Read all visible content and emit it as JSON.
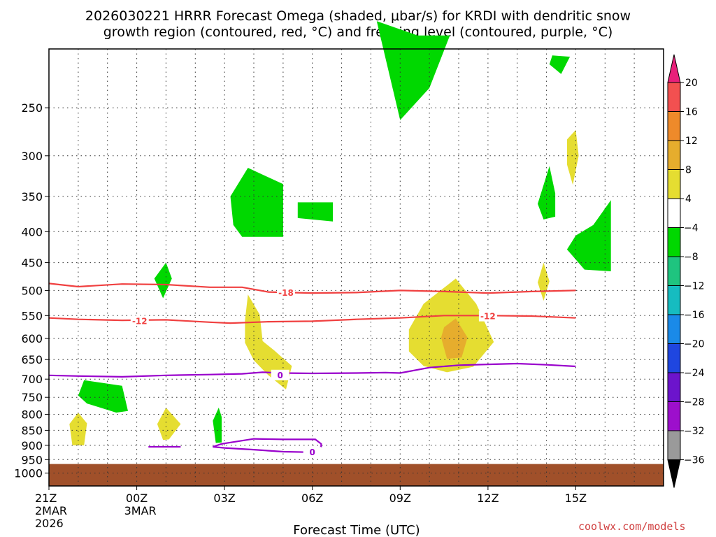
{
  "title_line1": "2026030221 HRRR Forecast Omega (shaded, μbar/s) for KRDI with dendritic snow",
  "title_line2": "growth region (contoured, red, °C) and freezing level (contoured, purple, °C)",
  "credit": "coolwx.com/models",
  "colors": {
    "neg4": "#00d800",
    "pos4": "#e5dd31",
    "pos8": "#e6ad2d",
    "temp": "#f04040",
    "freeze": "#9900cc",
    "ground": "#a0502a"
  },
  "chart_data": {
    "type": "heatmap",
    "title": "2026030221 HRRR Forecast Omega (shaded, μbar/s) for KRDI with dendritic snow growth region (contoured, red, °C) and freezing level (contoured, purple, °C)",
    "xlabel": "Forecast Time (UTC)",
    "ylabel": "",
    "x_hours_range": [
      21,
      42
    ],
    "y_pressure_range": [
      1050,
      200
    ],
    "y_scale": "log",
    "x_ticks": [
      {
        "hour": 21,
        "label": "21Z",
        "sub1": "2MAR",
        "sub2": "2026"
      },
      {
        "hour": 24,
        "label": "00Z",
        "sub1": "3MAR",
        "sub2": ""
      },
      {
        "hour": 27,
        "label": "03Z",
        "sub1": "",
        "sub2": ""
      },
      {
        "hour": 30,
        "label": "06Z",
        "sub1": "",
        "sub2": ""
      },
      {
        "hour": 33,
        "label": "09Z",
        "sub1": "",
        "sub2": ""
      },
      {
        "hour": 36,
        "label": "12Z",
        "sub1": "",
        "sub2": ""
      },
      {
        "hour": 39,
        "label": "15Z",
        "sub1": "",
        "sub2": ""
      }
    ],
    "y_ticks": [
      {
        "p": 250,
        "label": "250"
      },
      {
        "p": 300,
        "label": "300"
      },
      {
        "p": 350,
        "label": "350"
      },
      {
        "p": 400,
        "label": "400"
      },
      {
        "p": 450,
        "label": "450"
      },
      {
        "p": 500,
        "label": "500"
      },
      {
        "p": 550,
        "label": "550"
      },
      {
        "p": 600,
        "label": "600"
      },
      {
        "p": 650,
        "label": "650"
      },
      {
        "p": 700,
        "label": "700"
      },
      {
        "p": 750,
        "label": "750"
      },
      {
        "p": 800,
        "label": "800"
      },
      {
        "p": 850,
        "label": "850"
      },
      {
        "p": 900,
        "label": "900"
      },
      {
        "p": 950,
        "label": "950"
      },
      {
        "p": 1000,
        "label": "1000"
      }
    ],
    "grid": true,
    "colorbar": {
      "levels": [
        "20",
        "16",
        "12",
        "8",
        "4",
        "-4",
        "-8",
        "-12",
        "-16",
        "-20",
        "-24",
        "-28",
        "-32",
        "-36"
      ],
      "colors": [
        "#e8207a",
        "#f25050",
        "#ee8a2a",
        "#e6ad2d",
        "#e5dd31",
        "#ffffff",
        "#00d800",
        "#1fc47f",
        "#16bcc0",
        "#1a8ae8",
        "#1f46e0",
        "#6c14cc",
        "#9d0fcc",
        "#9a9a9a",
        "#000000"
      ]
    },
    "ground_level_hpa": 966,
    "omega_regions": [
      {
        "value": "-4",
        "points": [
          [
            33.6,
            190
          ],
          [
            34.7,
            190
          ],
          [
            34.0,
            232
          ],
          [
            33.0,
            262
          ],
          [
            32.2,
            180
          ]
        ]
      },
      {
        "value": "-4",
        "points": [
          [
            38.2,
            205
          ],
          [
            38.8,
            206
          ],
          [
            38.5,
            220
          ],
          [
            38.1,
            212
          ]
        ]
      },
      {
        "value": "-4",
        "points": [
          [
            27.8,
            314
          ],
          [
            29.0,
            334
          ],
          [
            29.0,
            408
          ],
          [
            27.6,
            408
          ],
          [
            27.3,
            390
          ],
          [
            27.2,
            350
          ]
        ]
      },
      {
        "value": "-4",
        "points": [
          [
            29.5,
            358
          ],
          [
            30.7,
            358
          ],
          [
            30.7,
            385
          ],
          [
            29.5,
            380
          ]
        ]
      },
      {
        "value": "-4",
        "points": [
          [
            38.1,
            312
          ],
          [
            38.3,
            346
          ],
          [
            38.3,
            378
          ],
          [
            37.9,
            382
          ],
          [
            37.7,
            360
          ]
        ]
      },
      {
        "value": "-4",
        "points": [
          [
            40.2,
            355
          ],
          [
            39.6,
            390
          ],
          [
            39.0,
            406
          ],
          [
            38.7,
            428
          ],
          [
            39.3,
            462
          ],
          [
            40.2,
            465
          ]
        ]
      },
      {
        "value": "-4",
        "points": [
          [
            25.0,
            450
          ],
          [
            25.2,
            478
          ],
          [
            24.9,
            515
          ],
          [
            24.6,
            478
          ]
        ]
      },
      {
        "value": "-4",
        "points": [
          [
            22.2,
            703
          ],
          [
            23.5,
            718
          ],
          [
            23.7,
            790
          ],
          [
            23.3,
            795
          ],
          [
            22.3,
            768
          ],
          [
            22.0,
            745
          ]
        ]
      },
      {
        "value": "-4",
        "points": [
          [
            26.8,
            780
          ],
          [
            26.9,
            808
          ],
          [
            26.9,
            890
          ],
          [
            26.7,
            892
          ],
          [
            26.6,
            820
          ]
        ]
      },
      {
        "value": "4",
        "points": [
          [
            39.0,
            272
          ],
          [
            39.1,
            300
          ],
          [
            38.9,
            335
          ],
          [
            38.7,
            310
          ],
          [
            38.7,
            282
          ]
        ]
      },
      {
        "value": "4",
        "points": [
          [
            37.9,
            450
          ],
          [
            38.1,
            483
          ],
          [
            37.9,
            520
          ],
          [
            37.7,
            485
          ]
        ]
      },
      {
        "value": "4",
        "points": [
          [
            27.8,
            508
          ],
          [
            28.2,
            548
          ],
          [
            28.3,
            606
          ],
          [
            28.7,
            628
          ],
          [
            29.3,
            666
          ],
          [
            29.1,
            728
          ],
          [
            28.5,
            690
          ],
          [
            28.0,
            652
          ],
          [
            27.7,
            610
          ],
          [
            27.7,
            560
          ]
        ]
      },
      {
        "value": "4",
        "points": [
          [
            34.9,
            478
          ],
          [
            35.6,
            526
          ],
          [
            36.2,
            608
          ],
          [
            35.5,
            668
          ],
          [
            34.6,
            682
          ],
          [
            33.8,
            666
          ],
          [
            33.3,
            630
          ],
          [
            33.3,
            580
          ],
          [
            33.8,
            526
          ]
        ]
      },
      {
        "value": "4",
        "points": [
          [
            25.0,
            780
          ],
          [
            25.5,
            830
          ],
          [
            25.1,
            880
          ],
          [
            24.9,
            882
          ],
          [
            24.7,
            830
          ]
        ]
      },
      {
        "value": "4",
        "points": [
          [
            22.0,
            795
          ],
          [
            22.3,
            828
          ],
          [
            22.2,
            900
          ],
          [
            21.8,
            900
          ],
          [
            21.7,
            830
          ]
        ]
      },
      {
        "value": "8",
        "points": [
          [
            34.9,
            556
          ],
          [
            35.3,
            598
          ],
          [
            35.1,
            645
          ],
          [
            34.6,
            648
          ],
          [
            34.4,
            598
          ],
          [
            34.5,
            575
          ]
        ]
      }
    ],
    "temperature_contours": [
      {
        "label": "-18",
        "label_at": [
          29.1,
          505
        ],
        "points": [
          [
            21.0,
            487
          ],
          [
            22.0,
            493
          ],
          [
            23.5,
            488
          ],
          [
            25.0,
            489
          ],
          [
            26.5,
            494
          ],
          [
            27.6,
            494
          ],
          [
            28.5,
            503
          ],
          [
            30.0,
            505
          ],
          [
            31.5,
            504
          ],
          [
            33.0,
            500
          ],
          [
            34.5,
            502
          ],
          [
            36.0,
            505
          ],
          [
            37.5,
            502
          ],
          [
            39.0,
            500
          ]
        ]
      },
      {
        "label": "-12",
        "label_at": [
          24.1,
          562
        ],
        "points": [
          [
            21.0,
            555
          ],
          [
            22.0,
            558
          ],
          [
            23.5,
            560
          ],
          [
            25.0,
            559
          ],
          [
            26.5,
            564
          ],
          [
            27.2,
            566
          ],
          [
            28.5,
            563
          ],
          [
            30.0,
            562
          ],
          [
            31.5,
            558
          ],
          [
            33.0,
            555
          ],
          [
            34.5,
            550
          ],
          [
            36.0,
            550
          ],
          [
            37.5,
            551
          ],
          [
            39.0,
            555
          ]
        ]
      },
      {
        "label": "-12",
        "label_at": [
          36.0,
          552
        ],
        "points": []
      }
    ],
    "freezing_contours": [
      {
        "label": "0",
        "label_at": [
          28.9,
          690
        ],
        "points": [
          [
            21.0,
            690
          ],
          [
            22.0,
            692
          ],
          [
            23.5,
            694
          ],
          [
            25.0,
            690
          ],
          [
            26.5,
            688
          ],
          [
            27.6,
            686
          ],
          [
            28.3,
            682
          ],
          [
            29.0,
            684
          ],
          [
            30.0,
            685
          ],
          [
            31.5,
            684
          ],
          [
            32.5,
            683
          ],
          [
            33.0,
            684
          ],
          [
            34.0,
            670
          ],
          [
            35.0,
            664
          ],
          [
            36.0,
            662
          ],
          [
            37.0,
            660
          ],
          [
            38.0,
            663
          ],
          [
            39.0,
            667
          ]
        ]
      },
      {
        "label": "",
        "label_at": null,
        "points": [
          [
            24.4,
            905
          ],
          [
            25.5,
            905
          ]
        ]
      },
      {
        "label": "0",
        "label_at": [
          30.0,
          925
        ],
        "points": [
          [
            26.9,
            895
          ],
          [
            28.0,
            878
          ],
          [
            29.0,
            880
          ],
          [
            30.1,
            880
          ],
          [
            30.3,
            895
          ],
          [
            30.3,
            905
          ],
          [
            30.0,
            924
          ],
          [
            29.0,
            922
          ],
          [
            28.0,
            915
          ],
          [
            27.0,
            909
          ],
          [
            26.6,
            905
          ],
          [
            26.9,
            895
          ]
        ]
      }
    ]
  }
}
